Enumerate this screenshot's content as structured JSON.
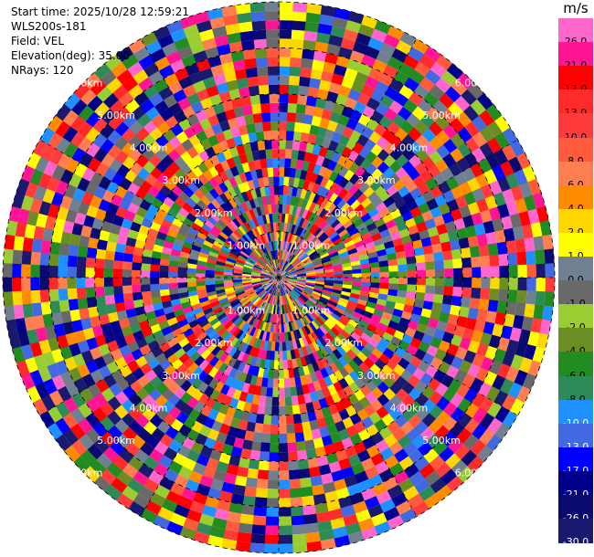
{
  "info": {
    "start_time": "Start time: 2025/10/28 12:59:21",
    "instrument": "WLS200s-181",
    "field": "Field: VEL",
    "elevation": "Elevation(deg): 35.00",
    "nrays": "NRays: 120"
  },
  "chart_data": {
    "type": "heatmap",
    "projection": "polar (PPI)",
    "field": "VEL",
    "unit": "m/s",
    "n_rays": 120,
    "max_range_km": 6.0,
    "range_rings_km": [
      1.0,
      2.0,
      3.0,
      4.0,
      5.0,
      6.0
    ],
    "ring_labels": [
      "1.00km",
      "2.00km",
      "3.00km",
      "4.00km",
      "5.00km",
      "6.00km"
    ],
    "color_scale": {
      "ticks": [
        "26.0",
        "21.0",
        "17.0",
        "13.0",
        "10.0",
        "8.0",
        "6.0",
        "4.0",
        "2.0",
        "1.0",
        "0.0",
        "-1.0",
        "-2.0",
        "-4.0",
        "-6.0",
        "-8.0",
        "-10.0",
        "-13.0",
        "-17.0",
        "-21.0",
        "-26.0",
        "-30.0"
      ],
      "colors": [
        "#ff66cc",
        "#ff1493",
        "#ff0000",
        "#ff2a2a",
        "#ff3b3b",
        "#ff5a3c",
        "#ff7f50",
        "#ff8c00",
        "#ffd700",
        "#ffff00",
        "#708090",
        "#696969",
        "#9acd32",
        "#6b8e23",
        "#228b22",
        "#2e8b57",
        "#1e90ff",
        "#4169e1",
        "#0000ff",
        "#00008b",
        "#0a0a6e",
        "#191970"
      ]
    }
  }
}
